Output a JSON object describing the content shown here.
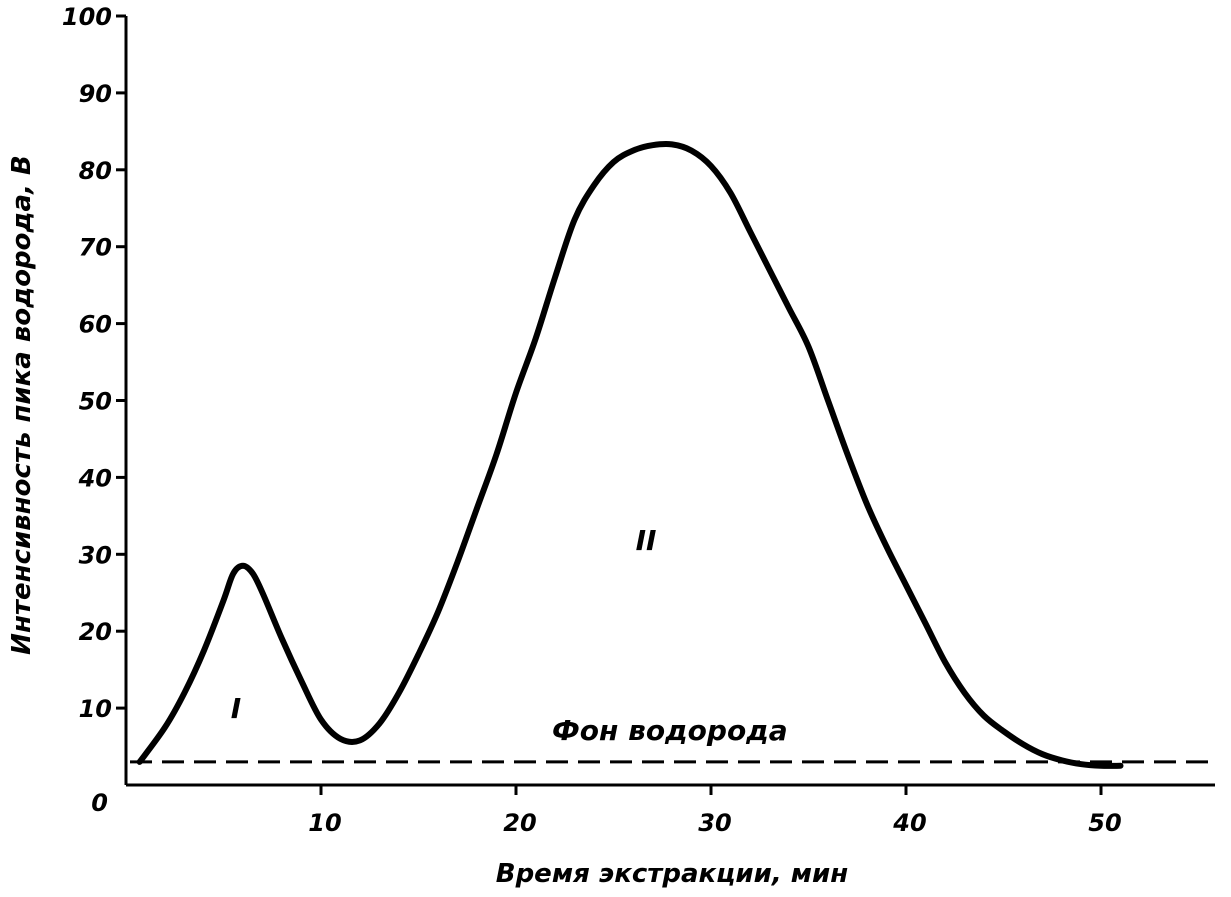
{
  "chart_data": {
    "type": "line",
    "title": "",
    "xlabel": "Время экстракции, мин",
    "ylabel": "Интенсивность пика водорода, В",
    "xlim": [
      0,
      56
    ],
    "ylim": [
      0,
      100
    ],
    "x_ticks": [
      10,
      20,
      30,
      40,
      50
    ],
    "y_ticks": [
      0,
      10,
      20,
      30,
      40,
      50,
      60,
      70,
      80,
      90,
      100
    ],
    "grid": false,
    "series": [
      {
        "x": [
          0.7,
          2,
          3,
          4,
          5,
          5.5,
          6,
          6.5,
          7,
          8,
          9,
          10,
          11,
          12,
          13,
          14,
          15,
          16,
          17,
          18,
          19,
          20,
          21,
          22,
          23,
          24,
          25,
          26,
          27,
          28,
          29,
          30,
          31,
          32,
          33,
          34,
          35,
          36,
          37,
          38,
          39,
          40,
          41,
          42,
          43,
          44,
          45,
          46,
          47,
          48,
          49,
          50,
          51
        ],
        "values": [
          3,
          7.5,
          12,
          17.5,
          24,
          27.5,
          28.5,
          27.5,
          25,
          19,
          13.5,
          8.5,
          6,
          5.8,
          8,
          12,
          17,
          22.5,
          29,
          36,
          43,
          51,
          58,
          66,
          73.5,
          78,
          81,
          82.5,
          83.2,
          83.3,
          82.5,
          80.5,
          77,
          72,
          67,
          62,
          57,
          50,
          43,
          36.5,
          31,
          26,
          21,
          16,
          12,
          9,
          7,
          5.3,
          4,
          3.2,
          2.7,
          2.5,
          2.5
        ]
      }
    ],
    "baseline": {
      "label": "Фон водорода",
      "y": 3
    },
    "annotations": [
      {
        "text": "I",
        "x": 6,
        "y": 10
      },
      {
        "text": "II",
        "x": 27,
        "y": 30
      }
    ]
  }
}
